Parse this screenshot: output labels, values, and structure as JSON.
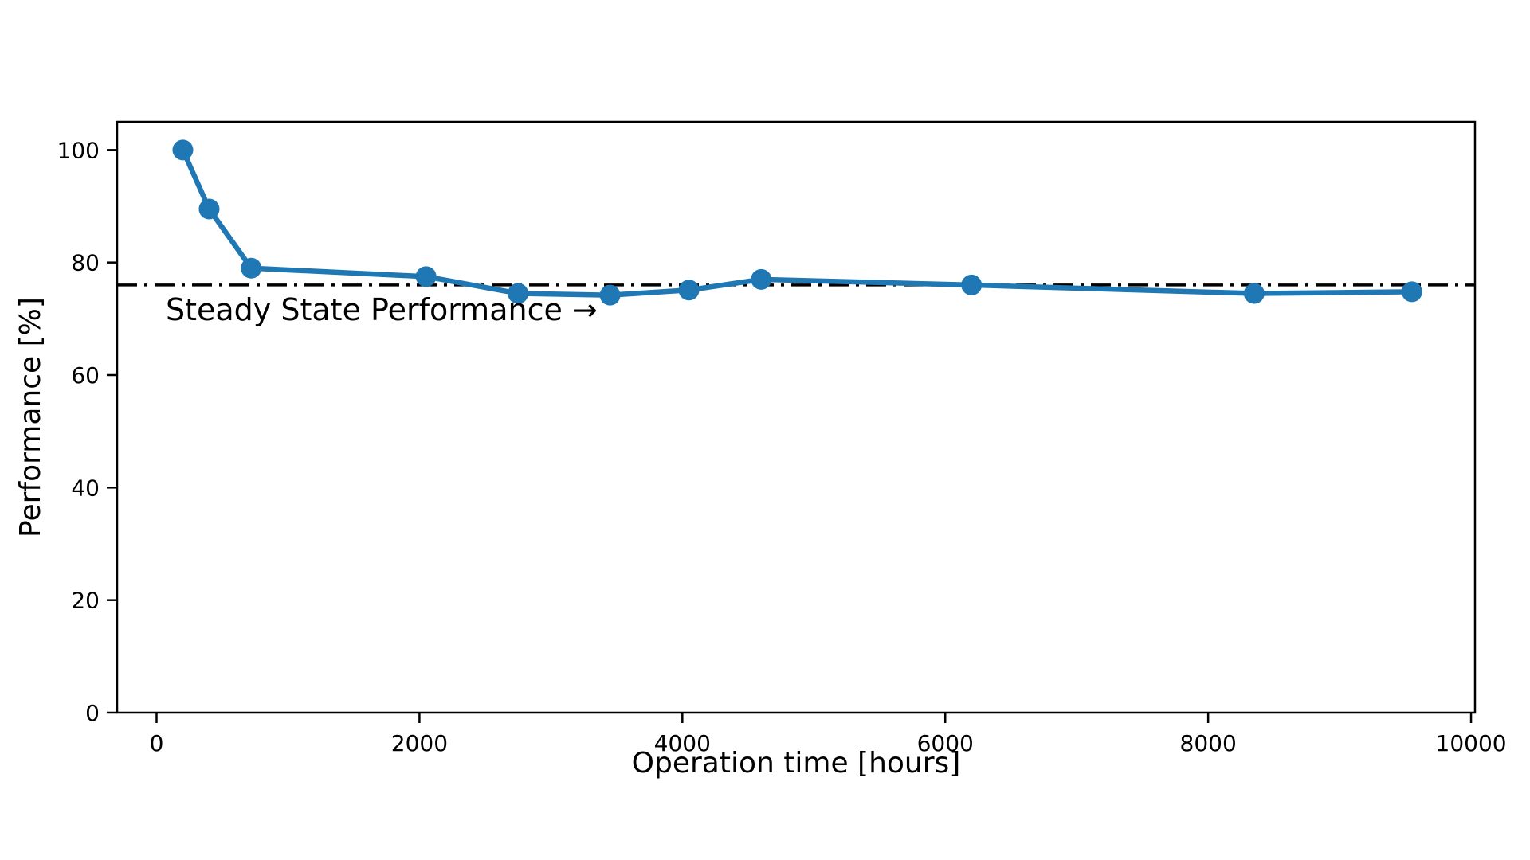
{
  "chart_data": {
    "type": "line",
    "title": "",
    "xlabel": "Operation time [hours]",
    "ylabel": "Performance [%]",
    "x": [
      200,
      400,
      720,
      2050,
      2750,
      3450,
      4050,
      4600,
      6200,
      8350,
      9550
    ],
    "y": [
      100,
      89.5,
      79,
      77.5,
      74.5,
      74.2,
      75.1,
      77,
      76,
      74.5,
      74.8
    ],
    "series_name": "Performance",
    "line_color": "#1f77b4",
    "marker": "circle",
    "marker_color": "#1f77b4",
    "xticks": [
      0,
      2000,
      4000,
      6000,
      8000,
      10000
    ],
    "yticks": [
      0,
      20,
      40,
      60,
      80,
      100
    ],
    "xlim": [
      -300,
      10030
    ],
    "ylim": [
      0,
      105
    ],
    "grid": false,
    "legend": "none",
    "reference_line": {
      "value": 76,
      "style": "dashdot",
      "color": "#000000",
      "label": "Steady State Performance →"
    }
  }
}
